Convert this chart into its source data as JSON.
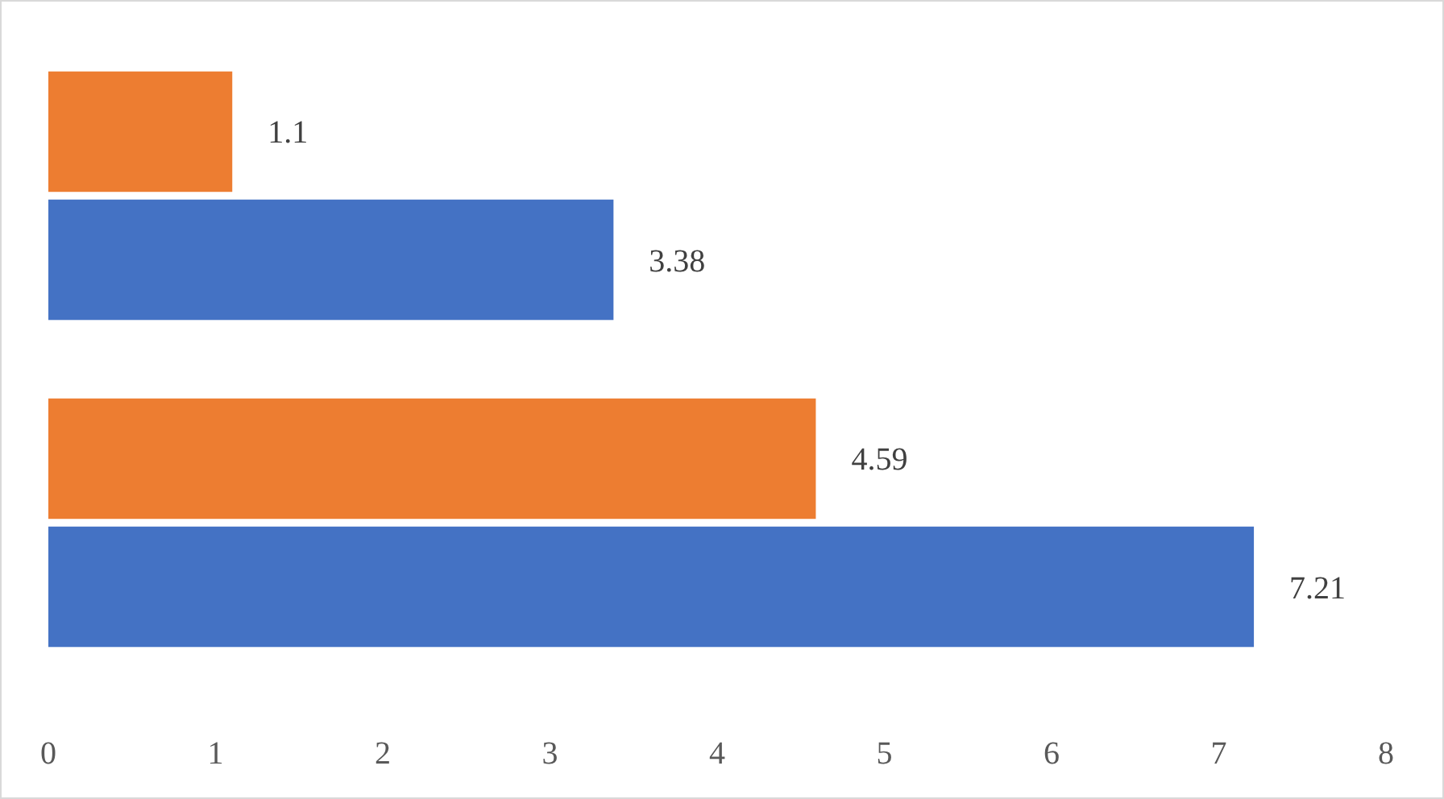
{
  "chart_data": {
    "type": "bar",
    "orientation": "horizontal",
    "categories": [
      null,
      null
    ],
    "series": [
      {
        "color": "#ed7d31",
        "values": [
          1.1,
          4.59
        ]
      },
      {
        "color": "#4472c4",
        "values": [
          3.38,
          7.21
        ]
      }
    ],
    "xlim": [
      0,
      8
    ],
    "xticks": [
      0,
      1,
      2,
      3,
      4,
      5,
      6,
      7,
      8
    ],
    "data_labels": true,
    "grid": false
  }
}
